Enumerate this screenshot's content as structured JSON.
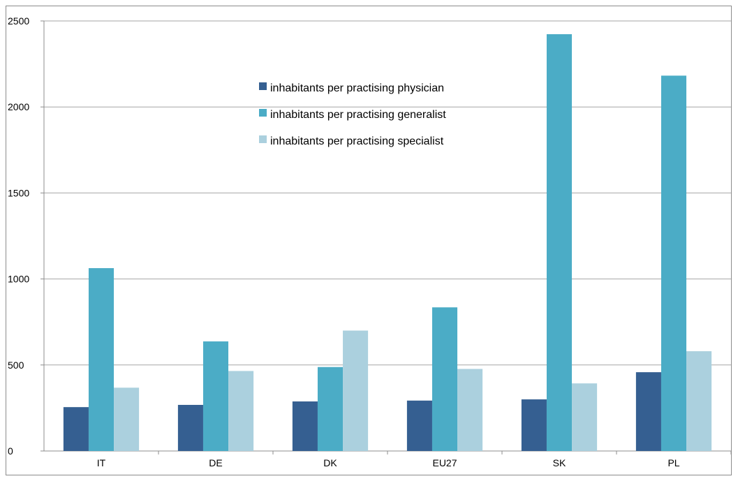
{
  "chart_data": {
    "type": "bar",
    "title": "",
    "xlabel": "",
    "ylabel": "",
    "categories": [
      "IT",
      "DE",
      "DK",
      "EU27",
      "SK",
      "PL"
    ],
    "series": [
      {
        "name": "inhabitants per practising physician",
        "color": "#355f91",
        "values": [
          255,
          268,
          288,
          293,
          300,
          458
        ]
      },
      {
        "name": "inhabitants per practising generalist",
        "color": "#4bacc6",
        "values": [
          1063,
          637,
          488,
          835,
          2423,
          2182
        ]
      },
      {
        "name": "inhabitants per practising specialist",
        "color": "#abd0de",
        "values": [
          368,
          465,
          700,
          477,
          393,
          580
        ]
      }
    ],
    "ylim": [
      0,
      2500
    ],
    "yticks": [
      0,
      500,
      1000,
      1500,
      2000,
      2500
    ],
    "grid": "horizontal",
    "legend_position": "inside-top-center"
  }
}
